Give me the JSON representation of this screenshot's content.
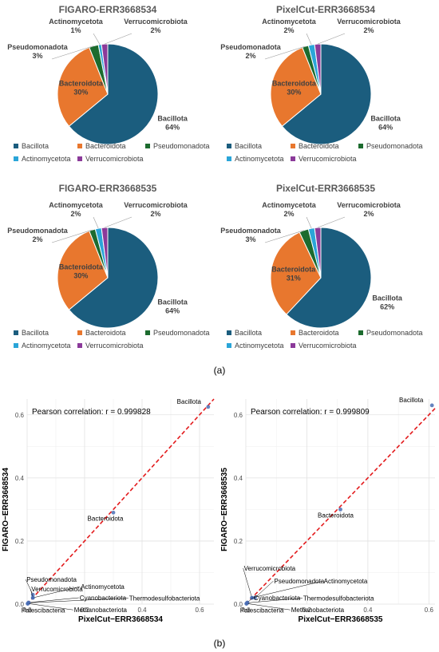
{
  "figure": {
    "label_a": "(a)",
    "label_b": "(b)"
  },
  "colors": {
    "Bacillota": "#1b5d7e",
    "Bacteroidota": "#e8772e",
    "Pseudomonadota": "#1c6b2e",
    "Actinomycetota": "#2aa5d8",
    "Verrucomicrobiota": "#8b3a9a",
    "scatter_point": "#4a6fb5",
    "reference_line": "#e31a1c"
  },
  "chart_data": [
    {
      "type": "pie",
      "title": "FIGARO-ERR3668534",
      "categories": [
        "Bacillota",
        "Bacteroidota",
        "Pseudomonadota",
        "Actinomycetota",
        "Verrucomicrobiota"
      ],
      "values": [
        64,
        30,
        3,
        1,
        2
      ],
      "labels": [
        "64%",
        "30%",
        "3%",
        "1%",
        "2%"
      ],
      "legend": "bottom"
    },
    {
      "type": "pie",
      "title": "PixelCut-ERR3668534",
      "categories": [
        "Bacillota",
        "Bacteroidota",
        "Pseudomonadota",
        "Actinomycetota",
        "Verrucomicrobiota"
      ],
      "values": [
        64,
        30,
        2,
        2,
        2
      ],
      "labels": [
        "64%",
        "30%",
        "2%",
        "2%",
        "2%"
      ],
      "legend": "bottom"
    },
    {
      "type": "pie",
      "title": "FIGARO-ERR3668535",
      "categories": [
        "Bacillota",
        "Bacteroidota",
        "Pseudomonadota",
        "Actinomycetota",
        "Verrucomicrobiota"
      ],
      "values": [
        64,
        30,
        2,
        2,
        2
      ],
      "labels": [
        "64%",
        "30%",
        "2%",
        "2%",
        "2%"
      ],
      "legend": "bottom"
    },
    {
      "type": "pie",
      "title": "PixelCut-ERR3668535",
      "categories": [
        "Bacillota",
        "Bacteroidota",
        "Pseudomonadota",
        "Actinomycetota",
        "Verrucomicrobiota"
      ],
      "values": [
        62,
        31,
        3,
        2,
        2
      ],
      "labels": [
        "62%",
        "31%",
        "3%",
        "2%",
        "2%"
      ],
      "legend": "bottom"
    },
    {
      "type": "scatter",
      "annotation": "Pearson correlation: r = 0.999828",
      "xlabel": "PixelCut−ERR3668534",
      "ylabel": "FIGARO−ERR3668534",
      "xlim": [
        0,
        0.65
      ],
      "ylim": [
        0,
        0.65
      ],
      "xticks": [
        "0.0",
        "0.2",
        "0.4",
        "0.6"
      ],
      "yticks": [
        "0.0",
        "0.2",
        "0.4",
        "0.6"
      ],
      "grid": true,
      "reference_line": "y = x (dashed)",
      "points": [
        {
          "name": "Bacillota",
          "x": 0.63,
          "y": 0.625
        },
        {
          "name": "Bacteroidota",
          "x": 0.3,
          "y": 0.29
        },
        {
          "name": "Pseudomonadota",
          "x": 0.02,
          "y": 0.03
        },
        {
          "name": "Actinomycetota",
          "x": 0.02,
          "y": 0.02
        },
        {
          "name": "Verrucomicrobiota",
          "x": 0.02,
          "y": 0.02
        },
        {
          "name": "Cyanobacteriota",
          "x": 0.005,
          "y": 0.005
        },
        {
          "name": "Thermodesulfobacteriota",
          "x": 0.005,
          "y": 0.004
        },
        {
          "name": "Patescibacteria",
          "x": 0.002,
          "y": 0.001
        },
        {
          "name": "Methanobacteriota",
          "x": 0.002,
          "y": 0.002
        }
      ]
    },
    {
      "type": "scatter",
      "annotation": "Pearson correlation: r = 0.999809",
      "xlabel": "PixelCut−ERR3668535",
      "ylabel": "FIGARO−ERR3668535",
      "xlim": [
        0,
        0.62
      ],
      "ylim": [
        0,
        0.65
      ],
      "xticks": [
        "0.0",
        "0.2",
        "0.4",
        "0.6"
      ],
      "yticks": [
        "0.0",
        "0.2",
        "0.4",
        "0.6"
      ],
      "grid": true,
      "reference_line": "y = x (dashed)",
      "points": [
        {
          "name": "Bacillota",
          "x": 0.61,
          "y": 0.63
        },
        {
          "name": "Bacteroidota",
          "x": 0.31,
          "y": 0.3
        },
        {
          "name": "Verrucomicrobiota",
          "x": 0.02,
          "y": 0.02
        },
        {
          "name": "Pseudomonadota",
          "x": 0.03,
          "y": 0.02
        },
        {
          "name": "Actinomycetota",
          "x": 0.02,
          "y": 0.02
        },
        {
          "name": "Cyanobacteriota",
          "x": 0.005,
          "y": 0.005
        },
        {
          "name": "Thermodesulfobacteriota",
          "x": 0.005,
          "y": 0.004
        },
        {
          "name": "Patescibacteria",
          "x": 0.002,
          "y": 0.001
        },
        {
          "name": "Methanobacteriota",
          "x": 0.002,
          "y": 0.002
        }
      ]
    }
  ]
}
